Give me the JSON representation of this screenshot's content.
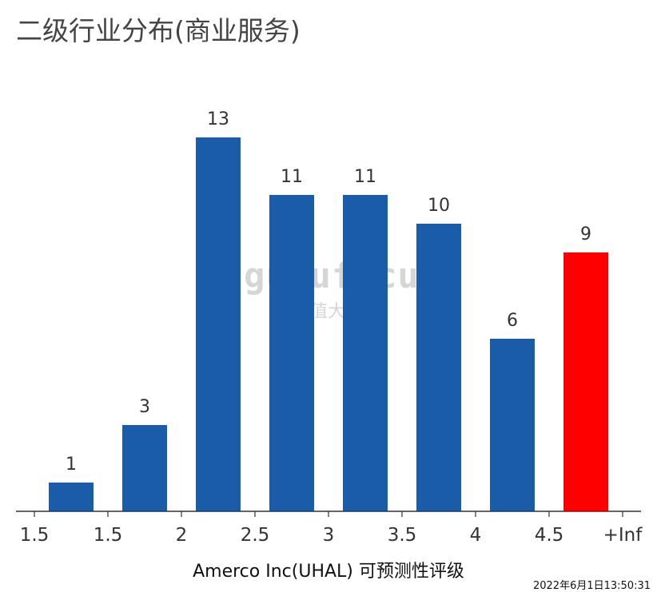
{
  "chart_data": {
    "type": "bar",
    "title": "二级行业分布(商业服务)",
    "xlabel": "Amerco Inc(UHAL) 可预测性评级",
    "ylabel": "",
    "x_tick_labels": [
      "1.5",
      "1.5",
      "2",
      "2.5",
      "3",
      "3.5",
      "4",
      "4.5",
      "+Inf"
    ],
    "values": [
      1,
      3,
      13,
      11,
      11,
      10,
      6,
      9
    ],
    "data_labels": [
      "1",
      "3",
      "13",
      "11",
      "11",
      "10",
      "6",
      "9"
    ],
    "highlight_index": 7,
    "ylim": [
      0,
      13
    ],
    "grid": false,
    "colors": {
      "bar": "#1a5ca8",
      "highlight": "#ff0000",
      "axis": "#333333",
      "label": "#333333"
    }
  },
  "watermark": {
    "brand": "gurufocus",
    "subtitle": "价值大师"
  },
  "timestamp": "2022年6月1日13:50:31"
}
